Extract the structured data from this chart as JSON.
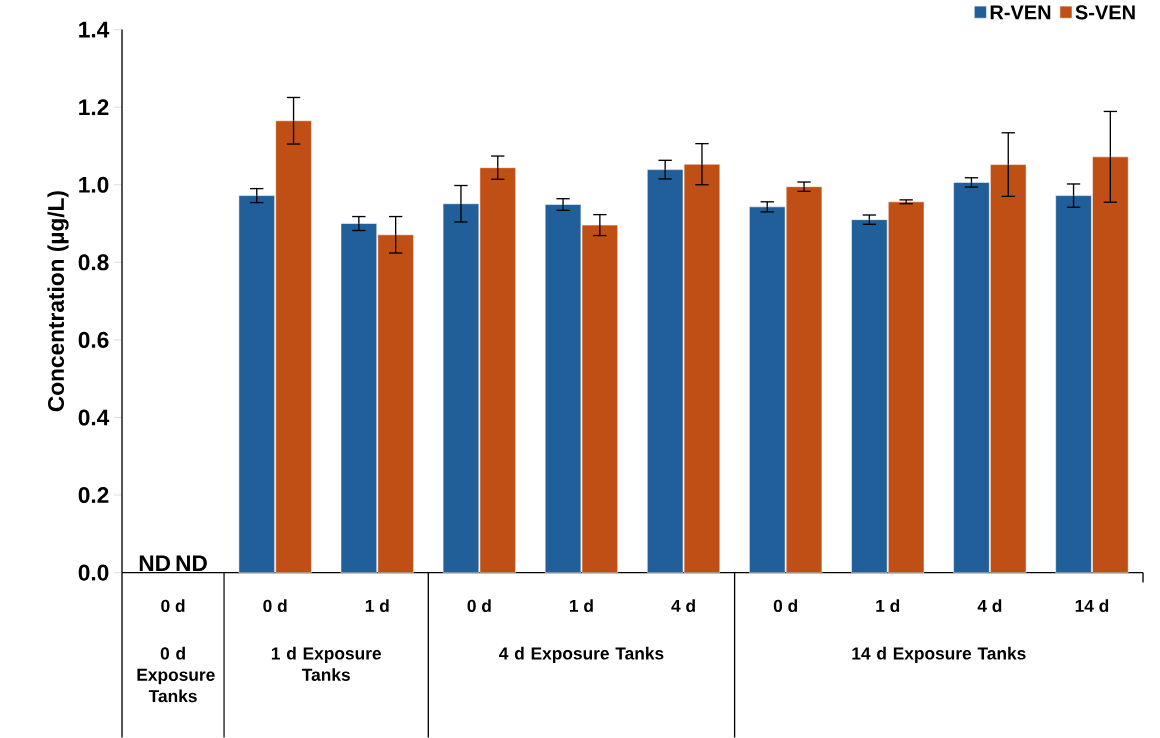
{
  "chart_data": {
    "type": "bar",
    "ylabel": "Concentration (µg/L)",
    "categories": [
      "0 d",
      "0 d",
      "1 d",
      "0 d",
      "1 d",
      "4 d",
      "0 d",
      "1 d",
      "4 d",
      "14 d"
    ],
    "series": [
      {
        "name": "R-VEN",
        "color": "#215f9a",
        "values": [
          null,
          0.972,
          0.9,
          0.951,
          0.949,
          1.039,
          0.943,
          0.91,
          1.006,
          0.972
        ],
        "errors": [
          null,
          0.018,
          0.018,
          0.047,
          0.015,
          0.024,
          0.013,
          0.012,
          0.012,
          0.03
        ],
        "value_labels": [
          "ND",
          null,
          null,
          null,
          null,
          null,
          null,
          null,
          null,
          null
        ]
      },
      {
        "name": "S-VEN",
        "color": "#c04f15",
        "values": [
          null,
          1.165,
          0.871,
          1.044,
          0.896,
          1.053,
          0.995,
          0.956,
          1.052,
          1.072
        ],
        "errors": [
          null,
          0.06,
          0.047,
          0.03,
          0.027,
          0.053,
          0.012,
          0.005,
          0.082,
          0.117
        ],
        "value_labels": [
          "ND",
          null,
          null,
          null,
          null,
          null,
          null,
          null,
          null,
          null
        ]
      }
    ],
    "annotations": [
      "0 d Exposure Tanks",
      "1 d Exposure Tanks",
      "4 d Exposure Tanks",
      "14 d Exposure Tanks"
    ],
    "ylim": [
      0,
      1.4
    ],
    "yticks": [
      {
        "value": 0,
        "label": "0.0"
      },
      0.2,
      0.4,
      0.6,
      0.8,
      {
        "value": 1,
        "label": "1.0"
      },
      1.2,
      1.4
    ],
    "legend": "top right",
    "grid": false
  }
}
